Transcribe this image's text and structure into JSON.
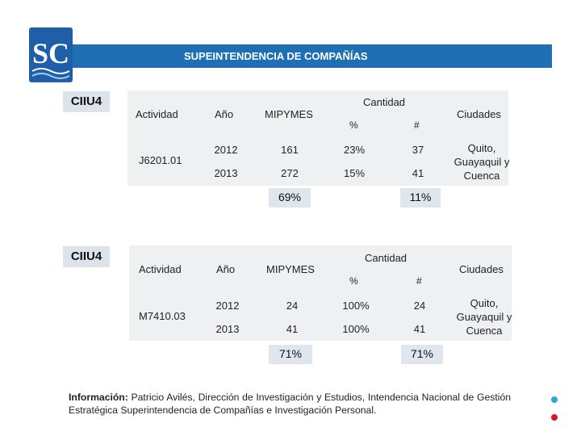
{
  "header": {
    "title": "SUPEINTENDENCIA DE COMPAÑÍAS",
    "logo_text": "SC"
  },
  "tables": [
    {
      "ciiu_label": "CIIU4",
      "activity_header": "Actividad",
      "year_header": "Año",
      "mipymes_header": "MIPYMES",
      "cantidad_header": "Cantidad",
      "pct_header": "%",
      "num_header": "#",
      "ciudades_header": "Ciudades",
      "activity_code": "J6201.01",
      "rows": [
        {
          "year": "2012",
          "mipymes": "161",
          "pct": "23%",
          "num": "37"
        },
        {
          "year": "2013",
          "mipymes": "272",
          "pct": "15%",
          "num": "41"
        }
      ],
      "cities": "Quito, Guayaquil y Cuenca",
      "total_mipymes": "69%",
      "total_num": "11%"
    },
    {
      "ciiu_label": "CIIU4",
      "activity_header": "Actividad",
      "year_header": "Año",
      "mipymes_header": "MIPYMES",
      "cantidad_header": "Cantidad",
      "pct_header": "%",
      "num_header": "#",
      "ciudades_header": "Ciudades",
      "activity_code": "M7410.03",
      "rows": [
        {
          "year": "2012",
          "mipymes": "24",
          "pct": "100%",
          "num": "24"
        },
        {
          "year": "2013",
          "mipymes": "41",
          "pct": "100%",
          "num": "41"
        }
      ],
      "cities": "Quito, Guayaquil y Cuenca",
      "total_mipymes": "71%",
      "total_num": "71%"
    }
  ],
  "footer": {
    "label": "Información:",
    "text": " Patricio Avilés, Dirección de Investigación y Estudios, Intendencia Nacional de Gestión Estratégica Superintendencia de Compañías e Investigación Personal."
  },
  "colors": {
    "banner": "#1f6fb5",
    "dot_blue": "#29a8e0",
    "dot_red": "#d7192b"
  }
}
